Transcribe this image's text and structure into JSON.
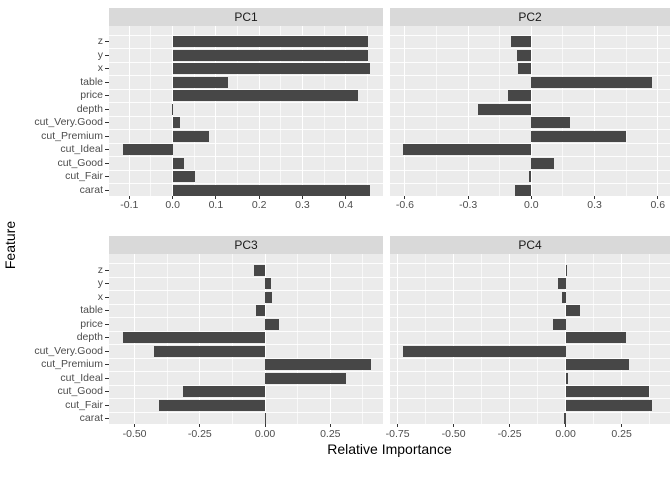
{
  "colors": {
    "bar": "#474747",
    "panel_background": "#EBEBEB",
    "strip_background": "#D9D9D9",
    "gridline": "#FFFFFF",
    "axis_text": "#4D4D4D",
    "tick_mark": "#333333",
    "title_text": "#000000"
  },
  "axis": {
    "x_title": "Relative Importance",
    "y_title": "Feature"
  },
  "chart_data": {
    "type": "bar",
    "orientation": "horizontal",
    "grid": "on",
    "facet_titles": [
      "PC1",
      "PC2",
      "PC3",
      "PC4"
    ],
    "categories_top_to_bottom": [
      "z",
      "y",
      "x",
      "table",
      "price",
      "depth",
      "cut_Very.Good",
      "cut_Premium",
      "cut_Ideal",
      "cut_Good",
      "cut_Fair",
      "carat"
    ],
    "xlabel": "Relative Importance",
    "ylabel": "Feature",
    "facets": [
      {
        "title": "PC1",
        "xlim": [
          -0.147,
          0.486
        ],
        "major_ticks": [
          -0.1,
          0.0,
          0.1,
          0.2,
          0.3,
          0.4
        ],
        "tick_labels": [
          "-0.1",
          "0.0",
          "0.1",
          "0.2",
          "0.3",
          "0.4"
        ],
        "minor_ticks": [
          -0.05,
          0.05,
          0.15,
          0.25,
          0.35,
          0.45
        ],
        "values": [
          0.452,
          0.452,
          0.456,
          0.128,
          0.428,
          -0.002,
          0.017,
          0.085,
          -0.115,
          0.026,
          0.051,
          0.456
        ]
      },
      {
        "title": "PC2",
        "xlim": [
          -0.671,
          0.658
        ],
        "major_ticks": [
          -0.6,
          -0.3,
          0.0,
          0.3,
          0.6
        ],
        "tick_labels": [
          "-0.6",
          "-0.3",
          "0.0",
          "0.3",
          "0.6"
        ],
        "minor_ticks": [
          -0.45,
          -0.15,
          0.15,
          0.45
        ],
        "values": [
          -0.096,
          -0.069,
          -0.062,
          0.571,
          -0.109,
          -0.253,
          0.184,
          0.448,
          -0.607,
          0.106,
          -0.012,
          -0.077
        ]
      },
      {
        "title": "PC3",
        "xlim": [
          -0.598,
          0.452
        ],
        "major_ticks": [
          -0.5,
          -0.25,
          0.0,
          0.25
        ],
        "tick_labels": [
          "-0.50",
          "-0.25",
          "0.00",
          "0.25"
        ],
        "minor_ticks": [
          -0.375,
          -0.125,
          0.125,
          0.375
        ],
        "values": [
          -0.043,
          0.022,
          0.027,
          -0.035,
          0.054,
          -0.546,
          -0.425,
          0.405,
          0.309,
          -0.314,
          -0.406,
          0.005
        ]
      },
      {
        "title": "PC4",
        "xlim": [
          -0.784,
          0.466
        ],
        "major_ticks": [
          -0.75,
          -0.5,
          -0.25,
          0.0,
          0.25
        ],
        "tick_labels": [
          "-0.75",
          "-0.50",
          "-0.25",
          "0.00",
          "0.25"
        ],
        "minor_ticks": [
          -0.625,
          -0.375,
          -0.125,
          0.125,
          0.375
        ],
        "values": [
          0.007,
          -0.034,
          -0.015,
          0.064,
          -0.055,
          0.268,
          -0.725,
          0.283,
          0.01,
          0.373,
          0.384,
          -0.005
        ]
      }
    ]
  }
}
